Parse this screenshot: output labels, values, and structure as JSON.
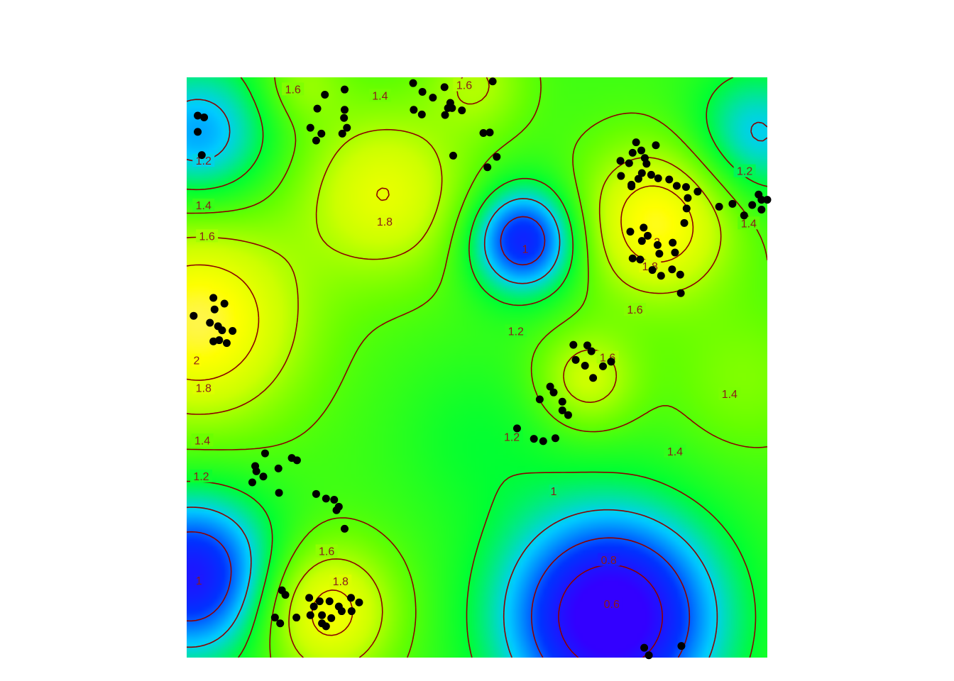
{
  "chart_data": {
    "type": "heatmap",
    "title": "",
    "xlabel": "",
    "ylabel": "",
    "axes_visible": false,
    "grid": false,
    "legend": "none",
    "colors": {
      "contour_line": "#8b0000",
      "contour_label": "#8b1a1a",
      "points": "#000000",
      "colormap": [
        "#3300ff",
        "#0033ff",
        "#00ccff",
        "#00ff33",
        "#66ff00",
        "#ccff00",
        "#ffff00",
        "#ffe6cc"
      ]
    },
    "contour_levels": [
      "0.6",
      "0.8",
      "1",
      "1.2",
      "1.4",
      "1.6",
      "1.8",
      "2"
    ],
    "contour_labels": [
      {
        "text": "1.6"
      },
      {
        "text": "1.4"
      },
      {
        "text": "1.6"
      },
      {
        "text": "1.2"
      },
      {
        "text": "1.4"
      },
      {
        "text": "1.6"
      },
      {
        "text": "1.8"
      },
      {
        "text": "1"
      },
      {
        "text": "1.2"
      },
      {
        "text": "2"
      },
      {
        "text": "1.8"
      },
      {
        "text": "1.6"
      },
      {
        "text": "1.2"
      },
      {
        "text": "1.4"
      },
      {
        "text": "2"
      },
      {
        "text": "1.8"
      },
      {
        "text": "1.6"
      },
      {
        "text": "1.4"
      },
      {
        "text": "1.2"
      },
      {
        "text": "1.4"
      },
      {
        "text": "1.4"
      },
      {
        "text": "1.2"
      },
      {
        "text": "1"
      },
      {
        "text": "1.6"
      },
      {
        "text": "1.8"
      },
      {
        "text": "0.8"
      },
      {
        "text": "0.6"
      },
      {
        "text": "1"
      }
    ],
    "points": [
      [
        0.019,
        0.934
      ],
      [
        0.03,
        0.931
      ],
      [
        0.019,
        0.906
      ],
      [
        0.026,
        0.866
      ],
      [
        0.238,
        0.97
      ],
      [
        0.272,
        0.979
      ],
      [
        0.225,
        0.946
      ],
      [
        0.272,
        0.944
      ],
      [
        0.271,
        0.93
      ],
      [
        0.213,
        0.913
      ],
      [
        0.232,
        0.903
      ],
      [
        0.223,
        0.891
      ],
      [
        0.276,
        0.913
      ],
      [
        0.268,
        0.903
      ],
      [
        0.39,
        0.99
      ],
      [
        0.406,
        0.975
      ],
      [
        0.444,
        0.983
      ],
      [
        0.424,
        0.965
      ],
      [
        0.454,
        0.956
      ],
      [
        0.45,
        0.947
      ],
      [
        0.391,
        0.944
      ],
      [
        0.405,
        0.936
      ],
      [
        0.445,
        0.935
      ],
      [
        0.474,
        0.943
      ],
      [
        0.457,
        0.947
      ],
      [
        0.527,
        0.993
      ],
      [
        0.459,
        0.865
      ],
      [
        0.511,
        0.904
      ],
      [
        0.522,
        0.905
      ],
      [
        0.534,
        0.863
      ],
      [
        0.518,
        0.845
      ],
      [
        0.774,
        0.888
      ],
      [
        0.783,
        0.874
      ],
      [
        0.808,
        0.883
      ],
      [
        0.768,
        0.87
      ],
      [
        0.789,
        0.861
      ],
      [
        0.747,
        0.856
      ],
      [
        0.762,
        0.852
      ],
      [
        0.792,
        0.851
      ],
      [
        0.784,
        0.835
      ],
      [
        0.778,
        0.825
      ],
      [
        0.8,
        0.832
      ],
      [
        0.812,
        0.826
      ],
      [
        0.748,
        0.83
      ],
      [
        0.766,
        0.812
      ],
      [
        0.766,
        0.815
      ],
      [
        0.831,
        0.824
      ],
      [
        0.844,
        0.813
      ],
      [
        0.86,
        0.811
      ],
      [
        0.88,
        0.803
      ],
      [
        0.863,
        0.792
      ],
      [
        0.861,
        0.774
      ],
      [
        0.857,
        0.749
      ],
      [
        0.787,
        0.741
      ],
      [
        0.764,
        0.734
      ],
      [
        0.794,
        0.727
      ],
      [
        0.784,
        0.718
      ],
      [
        0.811,
        0.711
      ],
      [
        0.837,
        0.715
      ],
      [
        0.814,
        0.696
      ],
      [
        0.841,
        0.698
      ],
      [
        0.781,
        0.686
      ],
      [
        0.768,
        0.688
      ],
      [
        0.802,
        0.668
      ],
      [
        0.836,
        0.669
      ],
      [
        0.85,
        0.66
      ],
      [
        0.817,
        0.658
      ],
      [
        0.851,
        0.628
      ],
      [
        0.917,
        0.777
      ],
      [
        0.94,
        0.782
      ],
      [
        0.96,
        0.762
      ],
      [
        0.985,
        0.798
      ],
      [
        0.99,
        0.789
      ],
      [
        1.0,
        0.789
      ],
      [
        0.99,
        0.772
      ],
      [
        0.974,
        0.78
      ],
      [
        0.046,
        0.62
      ],
      [
        0.048,
        0.6
      ],
      [
        0.065,
        0.61
      ],
      [
        0.012,
        0.589
      ],
      [
        0.04,
        0.577
      ],
      [
        0.054,
        0.571
      ],
      [
        0.079,
        0.563
      ],
      [
        0.061,
        0.564
      ],
      [
        0.056,
        0.547
      ],
      [
        0.046,
        0.545
      ],
      [
        0.069,
        0.542
      ],
      [
        0.666,
        0.539
      ],
      [
        0.69,
        0.538
      ],
      [
        0.697,
        0.528
      ],
      [
        0.731,
        0.51
      ],
      [
        0.717,
        0.502
      ],
      [
        0.67,
        0.513
      ],
      [
        0.686,
        0.503
      ],
      [
        0.7,
        0.482
      ],
      [
        0.626,
        0.467
      ],
      [
        0.632,
        0.457
      ],
      [
        0.608,
        0.445
      ],
      [
        0.647,
        0.441
      ],
      [
        0.647,
        0.426
      ],
      [
        0.657,
        0.418
      ],
      [
        0.569,
        0.395
      ],
      [
        0.598,
        0.377
      ],
      [
        0.614,
        0.373
      ],
      [
        0.635,
        0.378
      ],
      [
        0.135,
        0.352
      ],
      [
        0.181,
        0.344
      ],
      [
        0.19,
        0.34
      ],
      [
        0.118,
        0.33
      ],
      [
        0.158,
        0.326
      ],
      [
        0.12,
        0.321
      ],
      [
        0.132,
        0.312
      ],
      [
        0.113,
        0.302
      ],
      [
        0.159,
        0.284
      ],
      [
        0.223,
        0.282
      ],
      [
        0.24,
        0.274
      ],
      [
        0.254,
        0.272
      ],
      [
        0.258,
        0.254
      ],
      [
        0.262,
        0.26
      ],
      [
        0.272,
        0.222
      ],
      [
        0.164,
        0.116
      ],
      [
        0.17,
        0.108
      ],
      [
        0.211,
        0.103
      ],
      [
        0.229,
        0.097
      ],
      [
        0.246,
        0.097
      ],
      [
        0.219,
        0.088
      ],
      [
        0.262,
        0.088
      ],
      [
        0.283,
        0.103
      ],
      [
        0.297,
        0.095
      ],
      [
        0.284,
        0.08
      ],
      [
        0.267,
        0.08
      ],
      [
        0.233,
        0.073
      ],
      [
        0.213,
        0.073
      ],
      [
        0.152,
        0.069
      ],
      [
        0.189,
        0.069
      ],
      [
        0.161,
        0.059
      ],
      [
        0.233,
        0.059
      ],
      [
        0.249,
        0.068
      ],
      [
        0.24,
        0.054
      ],
      [
        0.788,
        0.017
      ],
      [
        0.796,
        0.004
      ],
      [
        0.852,
        0.02
      ]
    ]
  }
}
